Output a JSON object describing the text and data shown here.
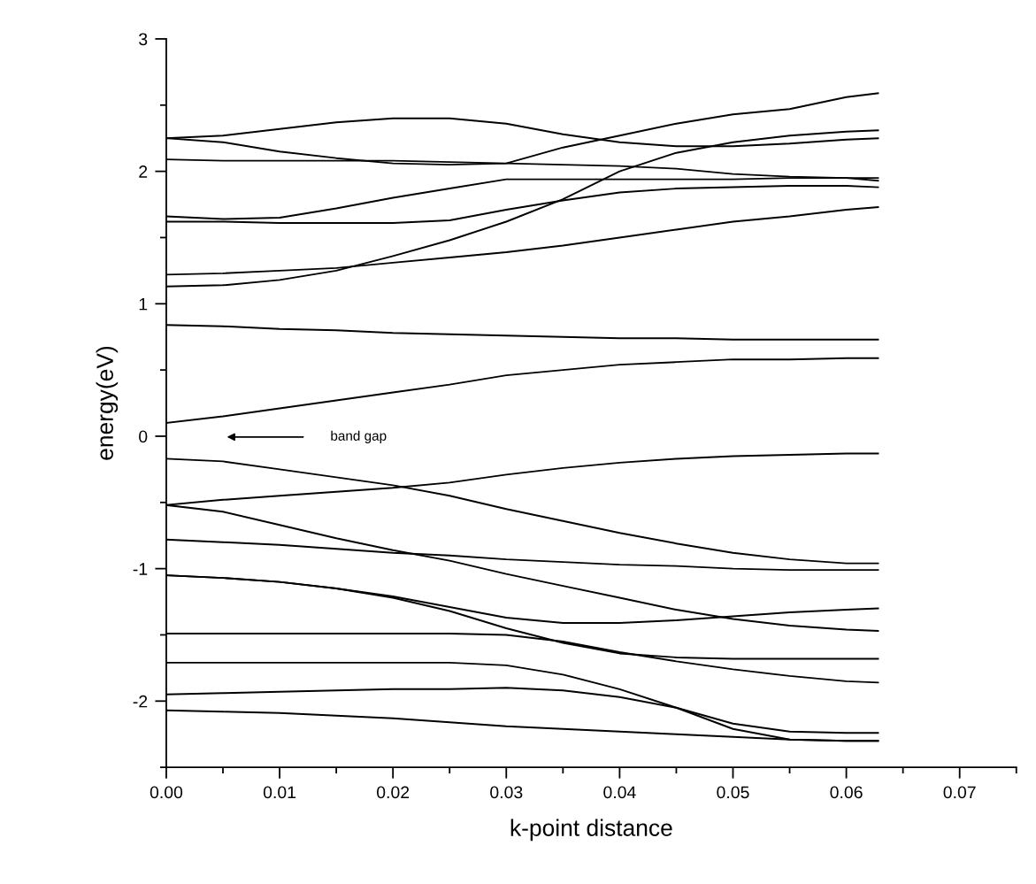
{
  "chart_data": {
    "type": "line",
    "xlabel": "k-point distance",
    "ylabel": "energy(eV)",
    "x": [
      0,
      0.005,
      0.01,
      0.015,
      0.02,
      0.025,
      0.03,
      0.035,
      0.04,
      0.045,
      0.05,
      0.055,
      0.06,
      0.0628
    ],
    "xlim": [
      0,
      0.075
    ],
    "ylim": [
      -2.5,
      3
    ],
    "xticks": [
      {
        "value": 0,
        "label": "0.00"
      },
      {
        "value": 0.005,
        "label": null
      },
      {
        "value": 0.01,
        "label": "0.01"
      },
      {
        "value": 0.015,
        "label": null
      },
      {
        "value": 0.02,
        "label": "0.02"
      },
      {
        "value": 0.025,
        "label": null
      },
      {
        "value": 0.03,
        "label": "0.03"
      },
      {
        "value": 0.035,
        "label": null
      },
      {
        "value": 0.04,
        "label": "0.04"
      },
      {
        "value": 0.045,
        "label": null
      },
      {
        "value": 0.05,
        "label": "0.05"
      },
      {
        "value": 0.055,
        "label": null
      },
      {
        "value": 0.06,
        "label": "0.06"
      },
      {
        "value": 0.065,
        "label": null
      },
      {
        "value": 0.07,
        "label": "0.07"
      },
      {
        "value": 0.075,
        "label": null
      }
    ],
    "yticks": [
      {
        "value": -2.5,
        "label": null
      },
      -2,
      {
        "value": -1.5,
        "label": null
      },
      -1,
      {
        "value": -0.5,
        "label": null
      },
      0,
      {
        "value": 0.5,
        "label": null
      },
      1,
      {
        "value": 1.5,
        "label": null
      },
      2,
      {
        "value": 2.5,
        "label": null
      },
      3
    ],
    "series": [
      {
        "color": "#000000",
        "values": [
          2.25,
          2.27,
          2.32,
          2.37,
          2.4,
          2.4,
          2.36,
          2.28,
          2.22,
          2.19,
          2.19,
          2.21,
          2.24,
          2.25
        ]
      },
      {
        "color": "#000000",
        "values": [
          2.25,
          2.22,
          2.15,
          2.1,
          2.06,
          2.05,
          2.06,
          2.18,
          2.27,
          2.36,
          2.43,
          2.47,
          2.56,
          2.59
        ]
      },
      {
        "color": "#000000",
        "values": [
          2.09,
          2.08,
          2.08,
          2.08,
          2.08,
          2.07,
          2.06,
          2.05,
          2.04,
          2.02,
          1.98,
          1.96,
          1.95,
          1.93
        ]
      },
      {
        "color": "#000000",
        "values": [
          1.66,
          1.64,
          1.65,
          1.72,
          1.8,
          1.87,
          1.94,
          1.94,
          1.94,
          1.94,
          1.94,
          1.95,
          1.95,
          1.95
        ]
      },
      {
        "color": "#000000",
        "values": [
          1.62,
          1.62,
          1.61,
          1.61,
          1.61,
          1.63,
          1.71,
          1.78,
          1.84,
          1.87,
          1.88,
          1.89,
          1.89,
          1.88
        ]
      },
      {
        "color": "#000000",
        "values": [
          1.22,
          1.23,
          1.25,
          1.27,
          1.31,
          1.35,
          1.39,
          1.44,
          1.5,
          1.56,
          1.62,
          1.66,
          1.71,
          1.73
        ]
      },
      {
        "color": "#000000",
        "values": [
          1.13,
          1.14,
          1.18,
          1.25,
          1.36,
          1.48,
          1.62,
          1.79,
          2.0,
          2.14,
          2.22,
          2.27,
          2.3,
          2.31
        ]
      },
      {
        "color": "#000000",
        "values": [
          0.84,
          0.83,
          0.81,
          0.8,
          0.78,
          0.77,
          0.76,
          0.75,
          0.74,
          0.74,
          0.73,
          0.73,
          0.73,
          0.73
        ]
      },
      {
        "color": "#000000",
        "values": [
          0.1,
          0.15,
          0.21,
          0.27,
          0.33,
          0.39,
          0.46,
          0.5,
          0.54,
          0.56,
          0.58,
          0.58,
          0.59,
          0.59
        ]
      },
      {
        "color": "#000000",
        "values": [
          -0.52,
          -0.48,
          -0.45,
          -0.42,
          -0.39,
          -0.35,
          -0.29,
          -0.24,
          -0.2,
          -0.17,
          -0.15,
          -0.14,
          -0.13,
          -0.13
        ]
      },
      {
        "color": "#000000",
        "values": [
          -0.17,
          -0.19,
          -0.25,
          -0.31,
          -0.37,
          -0.45,
          -0.55,
          -0.64,
          -0.73,
          -0.81,
          -0.88,
          -0.93,
          -0.96,
          -0.96
        ]
      },
      {
        "color": "#000000",
        "values": [
          -0.78,
          -0.8,
          -0.82,
          -0.85,
          -0.88,
          -0.9,
          -0.93,
          -0.95,
          -0.97,
          -0.98,
          -1.0,
          -1.01,
          -1.01,
          -1.01
        ]
      },
      {
        "color": "#000000",
        "values": [
          -0.52,
          -0.57,
          -0.67,
          -0.77,
          -0.86,
          -0.94,
          -1.04,
          -1.13,
          -1.22,
          -1.31,
          -1.38,
          -1.43,
          -1.46,
          -1.47
        ]
      },
      {
        "color": "#000000",
        "values": [
          -1.05,
          -1.07,
          -1.1,
          -1.15,
          -1.21,
          -1.29,
          -1.37,
          -1.41,
          -1.41,
          -1.39,
          -1.36,
          -1.33,
          -1.31,
          -1.3
        ]
      },
      {
        "color": "#000000",
        "values": [
          -1.05,
          -1.07,
          -1.1,
          -1.15,
          -1.22,
          -1.32,
          -1.45,
          -1.56,
          -1.64,
          -1.67,
          -1.68,
          -1.68,
          -1.68,
          -1.68
        ]
      },
      {
        "color": "#000000",
        "values": [
          -1.49,
          -1.49,
          -1.49,
          -1.49,
          -1.49,
          -1.49,
          -1.5,
          -1.55,
          -1.63,
          -1.7,
          -1.76,
          -1.81,
          -1.85,
          -1.86
        ]
      },
      {
        "color": "#000000",
        "values": [
          -1.71,
          -1.71,
          -1.71,
          -1.71,
          -1.71,
          -1.71,
          -1.73,
          -1.8,
          -1.91,
          -2.05,
          -2.21,
          -2.29,
          -2.3,
          -2.3
        ]
      },
      {
        "color": "#000000",
        "values": [
          -1.95,
          -1.94,
          -1.93,
          -1.92,
          -1.91,
          -1.91,
          -1.9,
          -1.92,
          -1.97,
          -2.05,
          -2.17,
          -2.23,
          -2.24,
          -2.24
        ]
      },
      {
        "color": "#000000",
        "values": [
          -2.07,
          -2.08,
          -2.09,
          -2.11,
          -2.13,
          -2.16,
          -2.19,
          -2.21,
          -2.23,
          -2.25,
          -2.27,
          -2.29,
          -2.3,
          -2.3
        ]
      }
    ],
    "annotations": [
      "band gap"
    ]
  }
}
